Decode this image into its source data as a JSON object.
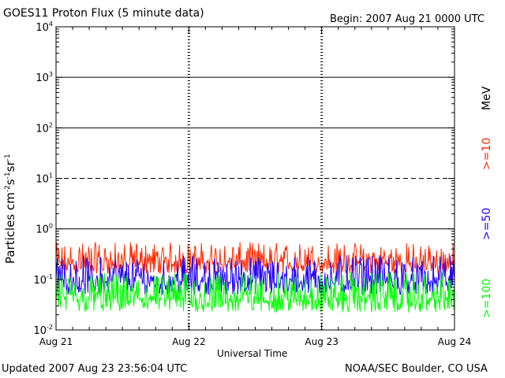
{
  "header": {
    "title": "GOES11 Proton Flux (5 minute data)",
    "begin": "Begin: 2007 Aug 21 0000 UTC"
  },
  "footer": {
    "updated": "Updated 2007 Aug 23 23:56:04 UTC",
    "source": "NOAA/SEC Boulder, CO USA"
  },
  "chart_data": {
    "type": "line",
    "title": "GOES11 Proton Flux (5 minute data)",
    "xlabel": "Universal Time",
    "ylabel_parts": {
      "base": "Particles cm",
      "e1": "-2",
      "m1": "s",
      "e2": "-1",
      "m2": "sr",
      "e3": "-1"
    },
    "ylim": [
      0.01,
      10000
    ],
    "yscale": "log",
    "xlim": [
      0,
      3
    ],
    "x_unit": "days since 2007 Aug 21 0000 UTC",
    "x_ticks": [
      {
        "value": 0,
        "label": "Aug 21"
      },
      {
        "value": 1,
        "label": "Aug 22"
      },
      {
        "value": 2,
        "label": "Aug 23"
      },
      {
        "value": 3,
        "label": "Aug 24"
      }
    ],
    "y_ticks": [
      {
        "value": 10000,
        "base": "10",
        "exp": "4"
      },
      {
        "value": 1000,
        "base": "10",
        "exp": "3"
      },
      {
        "value": 100,
        "base": "10",
        "exp": "2"
      },
      {
        "value": 10,
        "base": "10",
        "exp": "1"
      },
      {
        "value": 1,
        "base": "10",
        "exp": "0"
      },
      {
        "value": 0.1,
        "base": "10",
        "exp": "-1"
      },
      {
        "value": 0.01,
        "base": "10",
        "exp": "-2"
      }
    ],
    "gridlines": [
      {
        "value": 1000,
        "style": "solid"
      },
      {
        "value": 100,
        "style": "solid"
      },
      {
        "value": 10,
        "style": "dashed"
      },
      {
        "value": 1,
        "style": "solid"
      }
    ],
    "units_label": "MeV",
    "series": [
      {
        "name": ">=10",
        "color": "#ff2a00",
        "base": 0.2,
        "low": 0.13,
        "high": 0.55
      },
      {
        "name": ">=50",
        "color": "#2200ff",
        "base": 0.09,
        "low": 0.05,
        "high": 0.3
      },
      {
        "name": ">=100",
        "color": "#00ff00",
        "base": 0.04,
        "low": 0.022,
        "high": 0.14
      }
    ]
  }
}
